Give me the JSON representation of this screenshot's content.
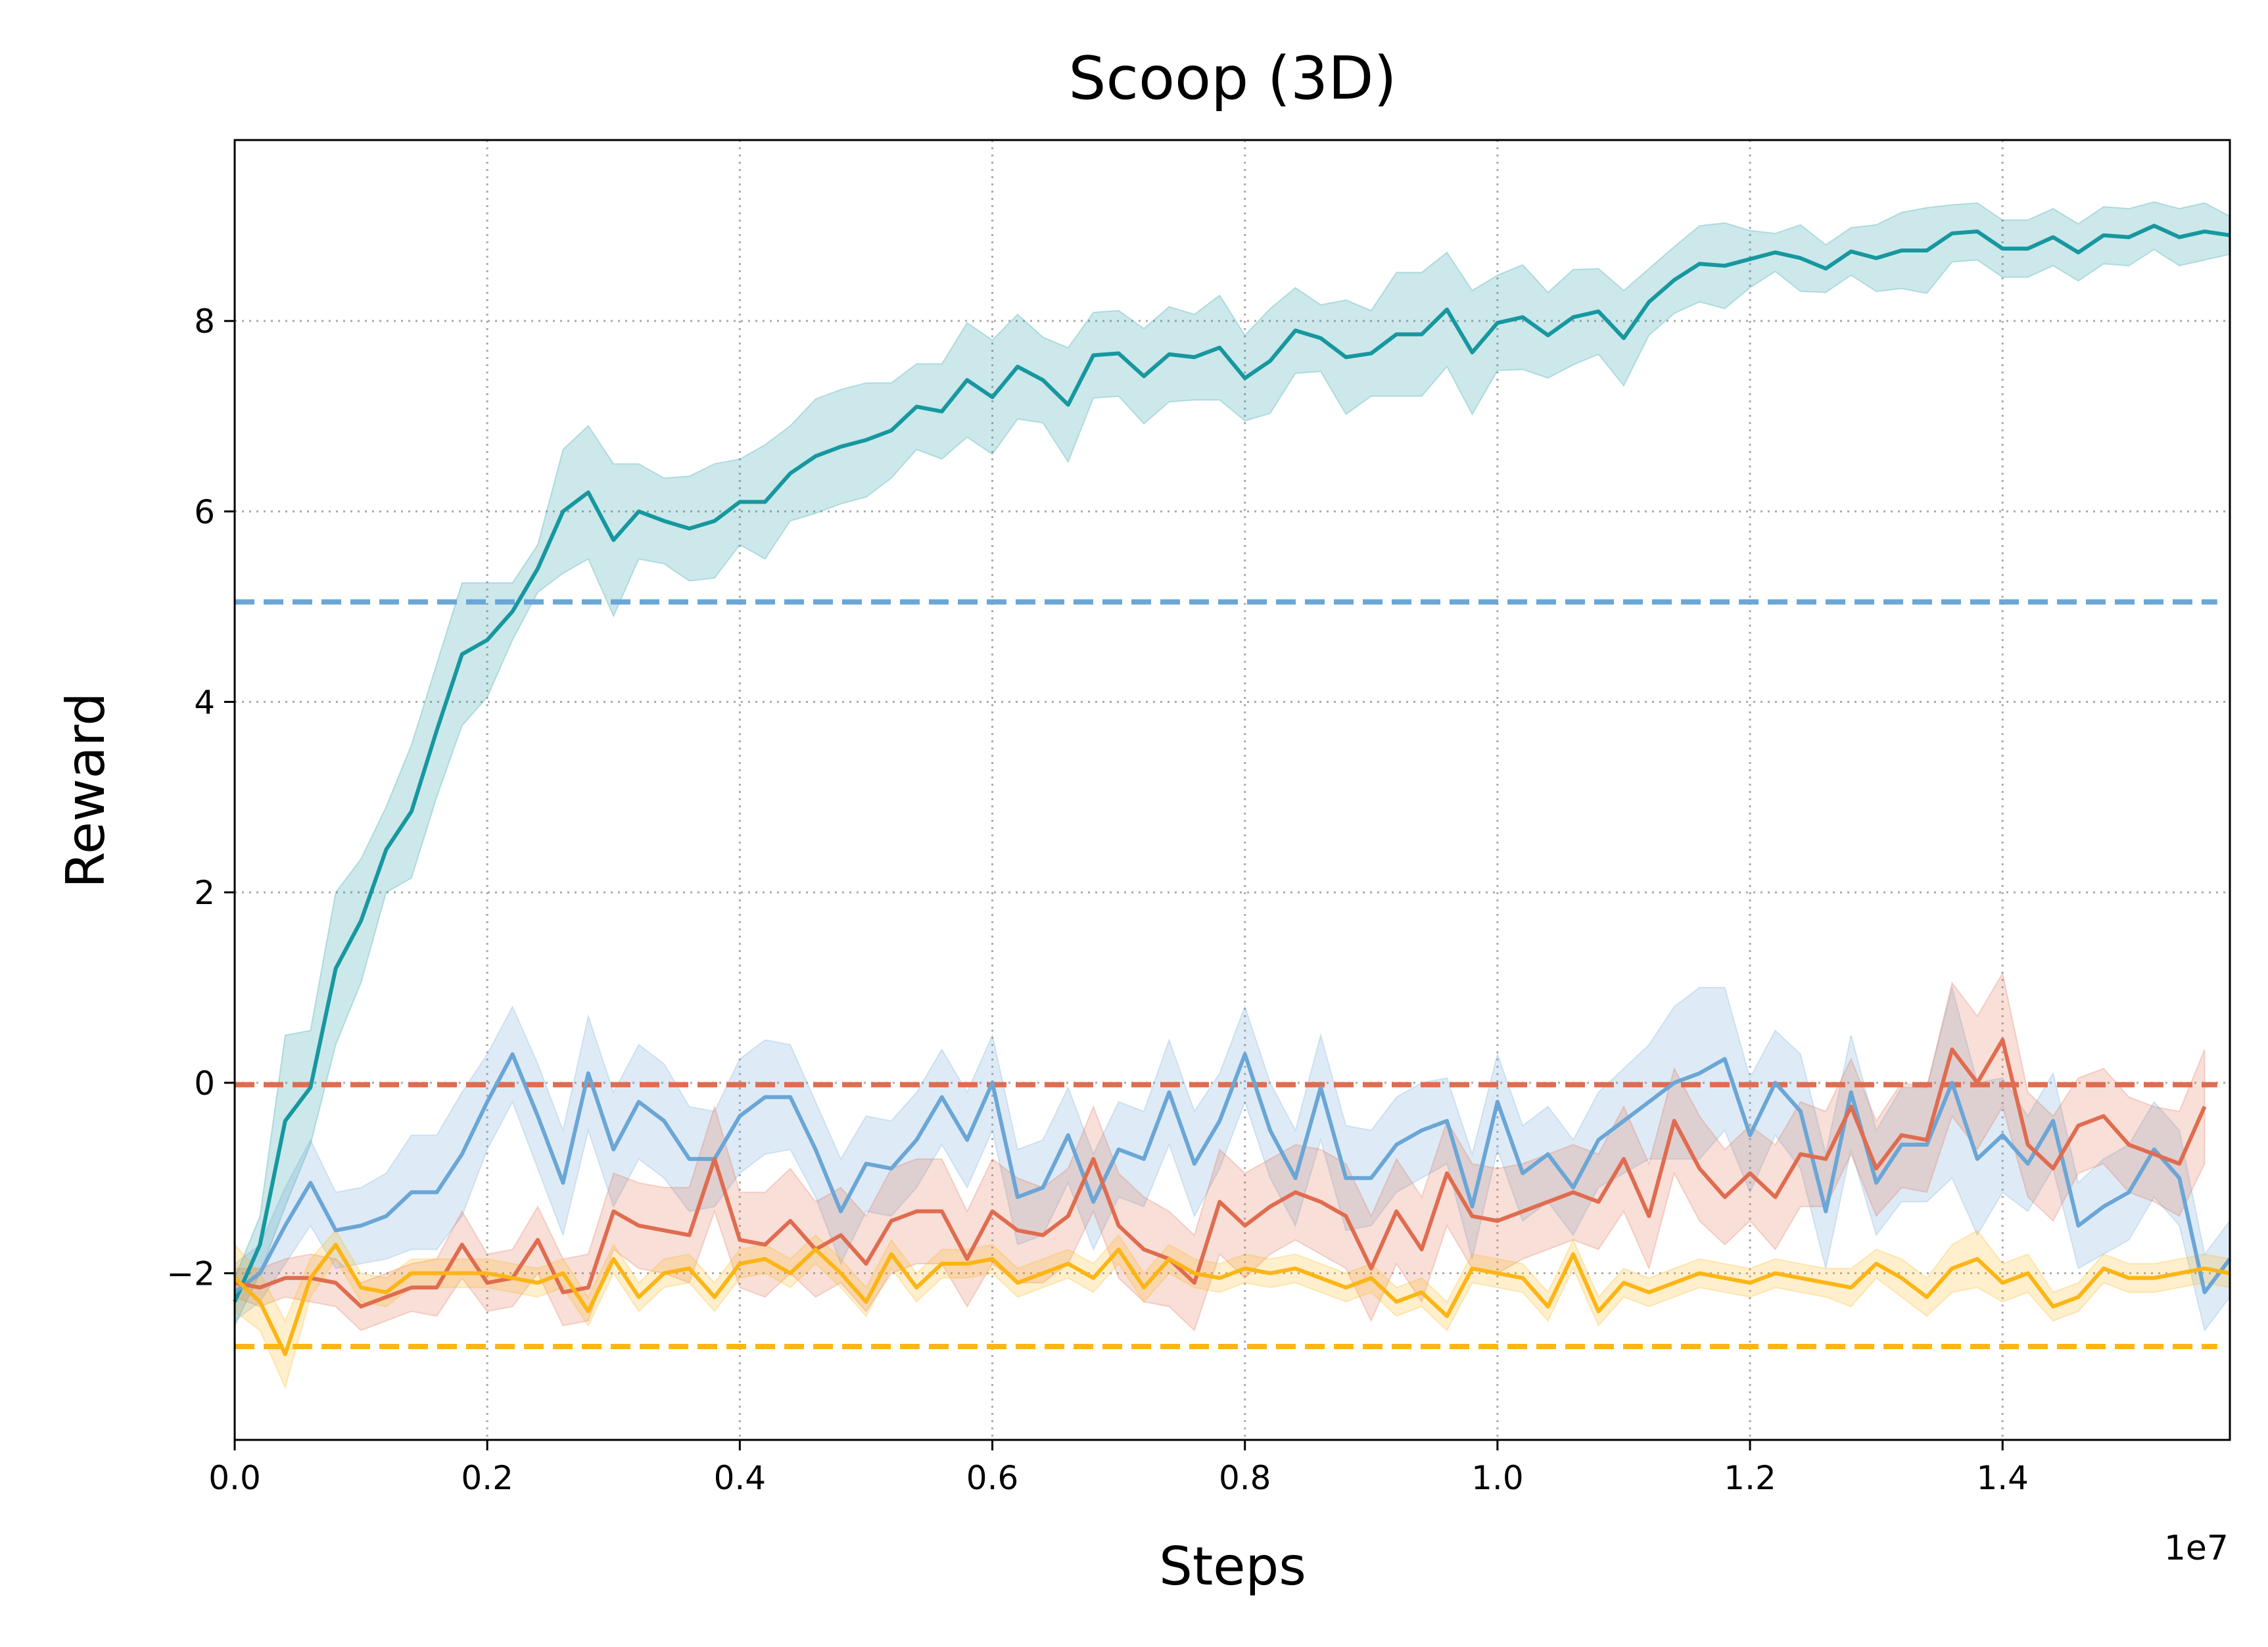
{
  "chart_data": {
    "type": "line",
    "title": "Scoop (3D)",
    "xlabel": "Steps",
    "ylabel": "Reward",
    "x_offset_label": "1e7",
    "xlim": [
      0,
      15.8
    ],
    "ylim": [
      -3.75,
      9.9
    ],
    "x_ticks": [
      0,
      0.2,
      0.4,
      0.6,
      0.8,
      1.0,
      1.2,
      1.4
    ],
    "x_tick_labels": [
      "0.0",
      "0.2",
      "0.4",
      "0.6",
      "0.8",
      "1.0",
      "1.2",
      "1.4"
    ],
    "y_ticks": [
      -2,
      0,
      2,
      4,
      6,
      8
    ],
    "y_tick_labels": [
      "−2",
      "0",
      "2",
      "4",
      "6",
      "8"
    ],
    "grid": true,
    "legend": "none",
    "series": [
      {
        "color": "#17979f",
        "x_start": 0,
        "x_step": 0.2,
        "values": [
          -2.3,
          -1.7,
          -0.4,
          -0.05,
          1.2,
          1.7,
          2.45,
          2.85,
          3.7,
          4.5,
          4.65,
          4.95,
          5.4,
          6.0,
          6.2,
          5.7,
          6.0,
          5.9,
          5.82,
          5.9,
          6.1,
          6.1,
          6.4,
          6.58,
          6.68,
          6.75,
          6.85,
          7.1,
          7.05,
          7.38,
          7.2,
          7.52,
          7.38,
          7.12,
          7.64,
          7.66,
          7.42,
          7.65,
          7.62,
          7.72,
          7.4,
          7.58,
          7.9,
          7.82,
          7.62,
          7.66,
          7.86,
          7.86,
          8.12,
          7.67,
          7.98,
          8.04,
          7.85,
          8.04,
          8.1,
          7.82,
          8.2,
          8.43,
          8.6,
          8.58,
          8.65,
          8.72,
          8.66,
          8.55,
          8.73,
          8.66,
          8.74,
          8.74,
          8.92,
          8.94,
          8.76,
          8.76,
          8.88,
          8.72,
          8.9,
          8.88,
          9.0,
          8.88,
          8.94,
          8.9
        ],
        "band": [
          0.25,
          0.3,
          0.9,
          0.6,
          0.8,
          0.65,
          0.45,
          0.7,
          0.7,
          0.75,
          0.6,
          0.3,
          0.25,
          0.65,
          0.7,
          0.8,
          0.5,
          0.45,
          0.55,
          0.6,
          0.45,
          0.6,
          0.5,
          0.6,
          0.6,
          0.6,
          0.5,
          0.45,
          0.5,
          0.6,
          0.6,
          0.55,
          0.45,
          0.6,
          0.45,
          0.45,
          0.5,
          0.5,
          0.45,
          0.55,
          0.45,
          0.55,
          0.45,
          0.35,
          0.6,
          0.45,
          0.65,
          0.65,
          0.6,
          0.65,
          0.5,
          0.55,
          0.45,
          0.5,
          0.45,
          0.5,
          0.35,
          0.35,
          0.4,
          0.45,
          0.3,
          0.2,
          0.35,
          0.25,
          0.25,
          0.35,
          0.4,
          0.45,
          0.3,
          0.3,
          0.3,
          0.3,
          0.3,
          0.3,
          0.3,
          0.3,
          0.25,
          0.3,
          0.3,
          0.2
        ]
      },
      {
        "color": "#6aa6d6",
        "x_start": 0,
        "x_step": 0.2,
        "values": [
          -2.2,
          -2.0,
          -1.5,
          -1.05,
          -1.55,
          -1.5,
          -1.4,
          -1.15,
          -1.15,
          -0.75,
          -0.2,
          0.3,
          -0.35,
          -1.05,
          0.1,
          -0.7,
          -0.2,
          -0.4,
          -0.8,
          -0.8,
          -0.35,
          -0.15,
          -0.15,
          -0.7,
          -1.35,
          -0.85,
          -0.9,
          -0.6,
          -0.15,
          -0.6,
          0.0,
          -1.2,
          -1.1,
          -0.55,
          -1.25,
          -0.7,
          -0.8,
          -0.1,
          -0.85,
          -0.4,
          0.3,
          -0.5,
          -1.0,
          -0.05,
          -1.0,
          -1.0,
          -0.65,
          -0.5,
          -0.4,
          -1.3,
          -0.2,
          -0.95,
          -0.75,
          -1.1,
          -0.6,
          -0.4,
          -0.2,
          0.0,
          0.1,
          0.25,
          -0.55,
          0.0,
          -0.3,
          -1.35,
          -0.1,
          -1.05,
          -0.65,
          -0.65,
          0.0,
          -0.8,
          -0.55,
          -0.85,
          -0.4,
          -1.5,
          -1.3,
          -1.15,
          -0.7,
          -1.0,
          -2.2,
          -1.85,
          -1.2
        ],
        "band": [
          0.3,
          0.3,
          0.4,
          0.45,
          0.4,
          0.4,
          0.45,
          0.6,
          0.6,
          0.65,
          0.5,
          0.5,
          0.55,
          0.55,
          0.6,
          0.6,
          0.6,
          0.6,
          0.55,
          0.5,
          0.6,
          0.6,
          0.55,
          0.5,
          0.55,
          0.5,
          0.5,
          0.5,
          0.5,
          0.5,
          0.5,
          0.5,
          0.5,
          0.5,
          0.5,
          0.5,
          0.5,
          0.55,
          0.55,
          0.5,
          0.5,
          0.5,
          0.5,
          0.55,
          0.55,
          0.5,
          0.5,
          0.5,
          0.45,
          0.55,
          0.5,
          0.5,
          0.5,
          0.5,
          0.5,
          0.55,
          0.6,
          0.8,
          0.9,
          0.75,
          0.6,
          0.55,
          0.6,
          0.6,
          0.6,
          0.55,
          0.6,
          0.6,
          1.0,
          0.8,
          0.6,
          0.5,
          0.5,
          0.45,
          0.5,
          0.5,
          0.5,
          0.5,
          0.4,
          0.4,
          0.4
        ]
      },
      {
        "color": "#e06c4f",
        "x_start": 0,
        "x_step": 0.2,
        "values": [
          -2.1,
          -2.15,
          -2.05,
          -2.05,
          -2.1,
          -2.35,
          -2.25,
          -2.15,
          -2.15,
          -1.7,
          -2.1,
          -2.05,
          -1.65,
          -2.2,
          -2.15,
          -1.35,
          -1.5,
          -1.55,
          -1.6,
          -0.8,
          -1.65,
          -1.7,
          -1.45,
          -1.75,
          -1.6,
          -1.9,
          -1.45,
          -1.35,
          -1.35,
          -1.85,
          -1.35,
          -1.55,
          -1.6,
          -1.4,
          -0.8,
          -1.5,
          -1.75,
          -1.85,
          -2.1,
          -1.25,
          -1.5,
          -1.3,
          -1.15,
          -1.25,
          -1.4,
          -1.95,
          -1.35,
          -1.75,
          -0.95,
          -1.4,
          -1.45,
          -1.35,
          -1.25,
          -1.15,
          -1.25,
          -0.8,
          -1.4,
          -0.4,
          -0.9,
          -1.2,
          -0.95,
          -1.2,
          -0.75,
          -0.8,
          -0.25,
          -0.9,
          -0.55,
          -0.6,
          0.35,
          0.0,
          0.45,
          -0.65,
          -0.9,
          -0.45,
          -0.35,
          -0.65,
          -0.75,
          -0.85,
          -0.25
        ],
        "band": [
          0.15,
          0.2,
          0.2,
          0.25,
          0.25,
          0.25,
          0.25,
          0.25,
          0.3,
          0.35,
          0.3,
          0.3,
          0.35,
          0.35,
          0.35,
          0.4,
          0.45,
          0.45,
          0.5,
          0.55,
          0.5,
          0.55,
          0.55,
          0.5,
          0.5,
          0.5,
          0.55,
          0.55,
          0.55,
          0.5,
          0.55,
          0.55,
          0.5,
          0.5,
          0.55,
          0.55,
          0.55,
          0.5,
          0.5,
          0.55,
          0.55,
          0.5,
          0.5,
          0.55,
          0.55,
          0.55,
          0.55,
          0.55,
          0.55,
          0.55,
          0.55,
          0.5,
          0.5,
          0.5,
          0.5,
          0.55,
          0.55,
          0.55,
          0.55,
          0.5,
          0.5,
          0.55,
          0.55,
          0.5,
          0.5,
          0.5,
          0.55,
          0.55,
          0.7,
          0.7,
          0.7,
          0.55,
          0.55,
          0.5,
          0.5,
          0.5,
          0.5,
          0.55,
          0.6
        ]
      },
      {
        "color": "#fdb515",
        "x_start": 0,
        "x_step": 0.2,
        "values": [
          -2.05,
          -2.3,
          -2.85,
          -2.05,
          -1.7,
          -2.15,
          -2.2,
          -2.0,
          -2.0,
          -2.0,
          -2.0,
          -2.05,
          -2.1,
          -2.0,
          -2.4,
          -1.85,
          -2.25,
          -2.0,
          -1.95,
          -2.25,
          -1.9,
          -1.85,
          -2.0,
          -1.75,
          -2.0,
          -2.3,
          -1.8,
          -2.15,
          -1.9,
          -1.9,
          -1.85,
          -2.1,
          -2.0,
          -1.9,
          -2.05,
          -1.75,
          -2.15,
          -1.85,
          -2.0,
          -2.05,
          -1.95,
          -2.0,
          -1.95,
          -2.05,
          -2.15,
          -2.05,
          -2.3,
          -2.2,
          -2.45,
          -1.95,
          -2.0,
          -2.05,
          -2.35,
          -1.8,
          -2.4,
          -2.1,
          -2.2,
          -2.1,
          -2.0,
          -2.05,
          -2.1,
          -2.0,
          -2.05,
          -2.1,
          -2.15,
          -1.9,
          -2.05,
          -2.25,
          -1.95,
          -1.85,
          -2.1,
          -2.0,
          -2.35,
          -2.25,
          -1.95,
          -2.05,
          -2.05,
          -2.0,
          -1.95,
          -2.0,
          -1.95
        ],
        "band": [
          0.35,
          0.3,
          0.35,
          0.2,
          0.15,
          0.15,
          0.15,
          0.15,
          0.15,
          0.15,
          0.15,
          0.15,
          0.15,
          0.15,
          0.15,
          0.15,
          0.15,
          0.15,
          0.15,
          0.15,
          0.15,
          0.15,
          0.15,
          0.15,
          0.15,
          0.15,
          0.15,
          0.15,
          0.15,
          0.15,
          0.15,
          0.15,
          0.15,
          0.15,
          0.15,
          0.15,
          0.15,
          0.15,
          0.15,
          0.15,
          0.15,
          0.15,
          0.15,
          0.15,
          0.15,
          0.15,
          0.15,
          0.15,
          0.15,
          0.15,
          0.15,
          0.15,
          0.15,
          0.15,
          0.15,
          0.15,
          0.15,
          0.15,
          0.15,
          0.15,
          0.15,
          0.15,
          0.15,
          0.15,
          0.2,
          0.15,
          0.2,
          0.2,
          0.25,
          0.3,
          0.2,
          0.2,
          0.15,
          0.15,
          0.15,
          0.15,
          0.15,
          0.15,
          0.15,
          0.15,
          0.15
        ]
      }
    ],
    "baselines": [
      {
        "y": 5.05,
        "color": "#6aa6d6",
        "x_end": 15.7
      },
      {
        "y": -0.02,
        "color": "#e06c4f",
        "x_end": 15.7
      },
      {
        "y": -2.77,
        "color": "#fdb515",
        "x_end": 15.7
      }
    ]
  }
}
